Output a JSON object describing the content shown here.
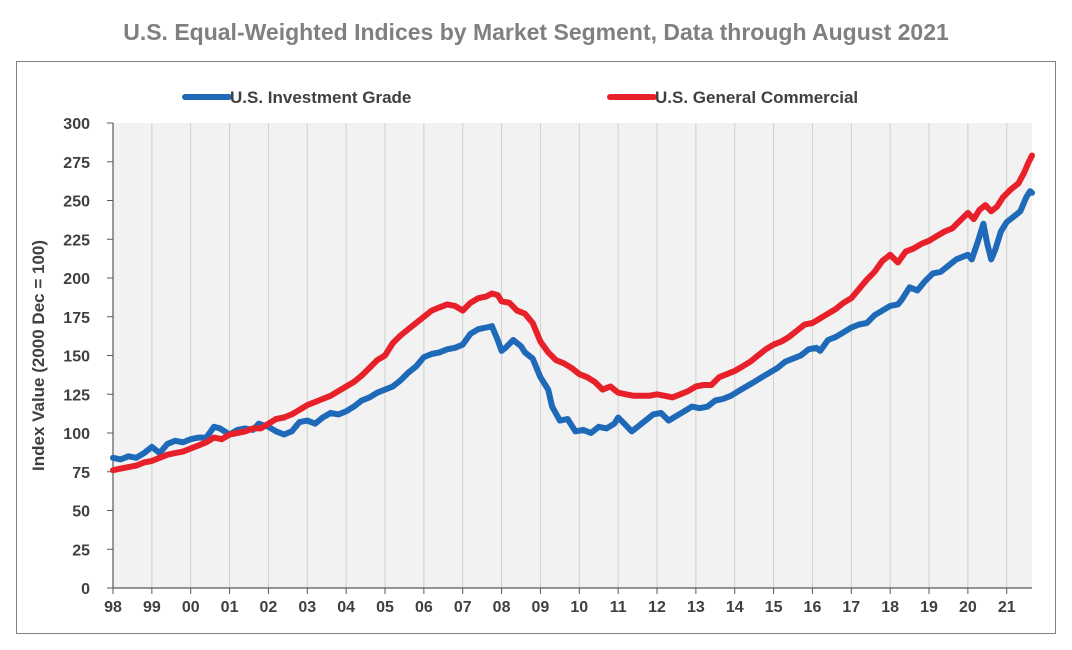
{
  "title": "U.S. Equal-Weighted Indices by Market Segment, Data through August 2021",
  "chart_data": {
    "type": "line",
    "title": "U.S. Equal-Weighted Indices by Market Segment, Data through August 2021",
    "xlabel": "",
    "ylabel": "Index Value (2000 Dec = 100)",
    "ylim": [
      0,
      300
    ],
    "xlim": [
      1998.0,
      2021.65
    ],
    "yticks": [
      0,
      25,
      50,
      75,
      100,
      125,
      150,
      175,
      200,
      225,
      250,
      275,
      300
    ],
    "xtick_labels": [
      "98",
      "99",
      "00",
      "01",
      "02",
      "03",
      "04",
      "05",
      "06",
      "07",
      "08",
      "09",
      "10",
      "11",
      "12",
      "13",
      "14",
      "15",
      "16",
      "17",
      "18",
      "19",
      "20",
      "21"
    ],
    "grid": "vertical",
    "legend": "top",
    "series": [
      {
        "name": "U.S. Investment Grade",
        "color": "#1f6ab8",
        "points": [
          [
            1998.0,
            84
          ],
          [
            1998.2,
            83
          ],
          [
            1998.4,
            85
          ],
          [
            1998.6,
            84
          ],
          [
            1998.8,
            87
          ],
          [
            1999.0,
            91
          ],
          [
            1999.2,
            87
          ],
          [
            1999.4,
            93
          ],
          [
            1999.6,
            95
          ],
          [
            1999.8,
            94
          ],
          [
            2000.0,
            96
          ],
          [
            2000.2,
            97
          ],
          [
            2000.4,
            97
          ],
          [
            2000.6,
            104
          ],
          [
            2000.75,
            103
          ],
          [
            2001.0,
            99
          ],
          [
            2001.2,
            102
          ],
          [
            2001.4,
            103
          ],
          [
            2001.6,
            102
          ],
          [
            2001.75,
            106
          ],
          [
            2002.0,
            104
          ],
          [
            2002.2,
            101
          ],
          [
            2002.4,
            99
          ],
          [
            2002.6,
            101
          ],
          [
            2002.8,
            107
          ],
          [
            2003.0,
            108
          ],
          [
            2003.2,
            106
          ],
          [
            2003.4,
            110
          ],
          [
            2003.6,
            113
          ],
          [
            2003.8,
            112
          ],
          [
            2004.0,
            114
          ],
          [
            2004.2,
            117
          ],
          [
            2004.4,
            121
          ],
          [
            2004.6,
            123
          ],
          [
            2004.8,
            126
          ],
          [
            2005.0,
            128
          ],
          [
            2005.2,
            130
          ],
          [
            2005.4,
            134
          ],
          [
            2005.6,
            139
          ],
          [
            2005.8,
            143
          ],
          [
            2006.0,
            149
          ],
          [
            2006.2,
            151
          ],
          [
            2006.4,
            152
          ],
          [
            2006.6,
            154
          ],
          [
            2006.8,
            155
          ],
          [
            2007.0,
            157
          ],
          [
            2007.2,
            164
          ],
          [
            2007.4,
            167
          ],
          [
            2007.6,
            168
          ],
          [
            2007.75,
            169
          ],
          [
            2007.9,
            160
          ],
          [
            2008.0,
            153
          ],
          [
            2008.1,
            155
          ],
          [
            2008.3,
            160
          ],
          [
            2008.5,
            156
          ],
          [
            2008.6,
            152
          ],
          [
            2008.8,
            148
          ],
          [
            2009.0,
            136
          ],
          [
            2009.2,
            128
          ],
          [
            2009.3,
            117
          ],
          [
            2009.5,
            108
          ],
          [
            2009.7,
            109
          ],
          [
            2009.9,
            101
          ],
          [
            2010.1,
            102
          ],
          [
            2010.3,
            100
          ],
          [
            2010.5,
            104
          ],
          [
            2010.7,
            103
          ],
          [
            2010.9,
            106
          ],
          [
            2011.0,
            110
          ],
          [
            2011.2,
            105
          ],
          [
            2011.35,
            101
          ],
          [
            2011.5,
            104
          ],
          [
            2011.7,
            108
          ],
          [
            2011.9,
            112
          ],
          [
            2012.1,
            113
          ],
          [
            2012.3,
            108
          ],
          [
            2012.5,
            111
          ],
          [
            2012.7,
            114
          ],
          [
            2012.9,
            117
          ],
          [
            2013.1,
            116
          ],
          [
            2013.3,
            117
          ],
          [
            2013.5,
            121
          ],
          [
            2013.7,
            122
          ],
          [
            2013.9,
            124
          ],
          [
            2014.1,
            127
          ],
          [
            2014.3,
            130
          ],
          [
            2014.5,
            133
          ],
          [
            2014.7,
            136
          ],
          [
            2014.9,
            139
          ],
          [
            2015.1,
            142
          ],
          [
            2015.3,
            146
          ],
          [
            2015.5,
            148
          ],
          [
            2015.7,
            150
          ],
          [
            2015.9,
            154
          ],
          [
            2016.1,
            155
          ],
          [
            2016.2,
            153
          ],
          [
            2016.4,
            160
          ],
          [
            2016.6,
            162
          ],
          [
            2016.8,
            165
          ],
          [
            2017.0,
            168
          ],
          [
            2017.2,
            170
          ],
          [
            2017.4,
            171
          ],
          [
            2017.6,
            176
          ],
          [
            2017.8,
            179
          ],
          [
            2018.0,
            182
          ],
          [
            2018.2,
            183
          ],
          [
            2018.3,
            186
          ],
          [
            2018.5,
            194
          ],
          [
            2018.7,
            192
          ],
          [
            2018.9,
            198
          ],
          [
            2019.1,
            203
          ],
          [
            2019.3,
            204
          ],
          [
            2019.5,
            208
          ],
          [
            2019.7,
            212
          ],
          [
            2019.9,
            214
          ],
          [
            2020.0,
            215
          ],
          [
            2020.1,
            212
          ],
          [
            2020.25,
            223
          ],
          [
            2020.4,
            235
          ],
          [
            2020.5,
            222
          ],
          [
            2020.6,
            212
          ],
          [
            2020.7,
            218
          ],
          [
            2020.85,
            230
          ],
          [
            2021.0,
            236
          ],
          [
            2021.2,
            240
          ],
          [
            2021.35,
            243
          ],
          [
            2021.5,
            252
          ],
          [
            2021.6,
            256
          ],
          [
            2021.65,
            255
          ]
        ]
      },
      {
        "name": "U.S. General Commercial",
        "color": "#e8202a",
        "points": [
          [
            1998.0,
            76
          ],
          [
            1998.2,
            77
          ],
          [
            1998.4,
            78
          ],
          [
            1998.6,
            79
          ],
          [
            1998.8,
            81
          ],
          [
            1999.0,
            82
          ],
          [
            1999.2,
            84
          ],
          [
            1999.4,
            86
          ],
          [
            1999.6,
            87
          ],
          [
            1999.8,
            88
          ],
          [
            2000.0,
            90
          ],
          [
            2000.2,
            92
          ],
          [
            2000.4,
            94
          ],
          [
            2000.6,
            97
          ],
          [
            2000.8,
            96
          ],
          [
            2001.0,
            99
          ],
          [
            2001.2,
            100
          ],
          [
            2001.4,
            101
          ],
          [
            2001.6,
            103
          ],
          [
            2001.8,
            103
          ],
          [
            2002.0,
            106
          ],
          [
            2002.2,
            109
          ],
          [
            2002.4,
            110
          ],
          [
            2002.6,
            112
          ],
          [
            2002.8,
            115
          ],
          [
            2003.0,
            118
          ],
          [
            2003.2,
            120
          ],
          [
            2003.4,
            122
          ],
          [
            2003.6,
            124
          ],
          [
            2003.8,
            127
          ],
          [
            2004.0,
            130
          ],
          [
            2004.2,
            133
          ],
          [
            2004.4,
            137
          ],
          [
            2004.6,
            142
          ],
          [
            2004.8,
            147
          ],
          [
            2005.0,
            150
          ],
          [
            2005.2,
            158
          ],
          [
            2005.4,
            163
          ],
          [
            2005.6,
            167
          ],
          [
            2005.8,
            171
          ],
          [
            2006.0,
            175
          ],
          [
            2006.2,
            179
          ],
          [
            2006.4,
            181
          ],
          [
            2006.6,
            183
          ],
          [
            2006.8,
            182
          ],
          [
            2007.0,
            179
          ],
          [
            2007.2,
            184
          ],
          [
            2007.4,
            187
          ],
          [
            2007.6,
            188
          ],
          [
            2007.75,
            190
          ],
          [
            2007.9,
            189
          ],
          [
            2008.0,
            185
          ],
          [
            2008.2,
            184
          ],
          [
            2008.4,
            179
          ],
          [
            2008.6,
            177
          ],
          [
            2008.8,
            171
          ],
          [
            2009.0,
            159
          ],
          [
            2009.2,
            152
          ],
          [
            2009.4,
            147
          ],
          [
            2009.6,
            145
          ],
          [
            2009.8,
            142
          ],
          [
            2010.0,
            138
          ],
          [
            2010.2,
            136
          ],
          [
            2010.4,
            133
          ],
          [
            2010.6,
            128
          ],
          [
            2010.8,
            130
          ],
          [
            2011.0,
            126
          ],
          [
            2011.2,
            125
          ],
          [
            2011.4,
            124
          ],
          [
            2011.6,
            124
          ],
          [
            2011.8,
            124
          ],
          [
            2012.0,
            125
          ],
          [
            2012.2,
            124
          ],
          [
            2012.4,
            123
          ],
          [
            2012.6,
            125
          ],
          [
            2012.8,
            127
          ],
          [
            2013.0,
            130
          ],
          [
            2013.2,
            131
          ],
          [
            2013.4,
            131
          ],
          [
            2013.6,
            136
          ],
          [
            2013.8,
            138
          ],
          [
            2014.0,
            140
          ],
          [
            2014.2,
            143
          ],
          [
            2014.4,
            146
          ],
          [
            2014.6,
            150
          ],
          [
            2014.8,
            154
          ],
          [
            2015.0,
            157
          ],
          [
            2015.2,
            159
          ],
          [
            2015.4,
            162
          ],
          [
            2015.6,
            166
          ],
          [
            2015.8,
            170
          ],
          [
            2016.0,
            171
          ],
          [
            2016.2,
            174
          ],
          [
            2016.4,
            177
          ],
          [
            2016.6,
            180
          ],
          [
            2016.8,
            184
          ],
          [
            2017.0,
            187
          ],
          [
            2017.2,
            193
          ],
          [
            2017.4,
            199
          ],
          [
            2017.6,
            204
          ],
          [
            2017.8,
            211
          ],
          [
            2018.0,
            215
          ],
          [
            2018.2,
            210
          ],
          [
            2018.4,
            217
          ],
          [
            2018.6,
            219
          ],
          [
            2018.8,
            222
          ],
          [
            2019.0,
            224
          ],
          [
            2019.2,
            227
          ],
          [
            2019.4,
            230
          ],
          [
            2019.6,
            232
          ],
          [
            2019.8,
            237
          ],
          [
            2020.0,
            242
          ],
          [
            2020.15,
            238
          ],
          [
            2020.3,
            244
          ],
          [
            2020.45,
            247
          ],
          [
            2020.6,
            243
          ],
          [
            2020.75,
            246
          ],
          [
            2020.9,
            252
          ],
          [
            2021.1,
            257
          ],
          [
            2021.3,
            261
          ],
          [
            2021.45,
            268
          ],
          [
            2021.55,
            274
          ],
          [
            2021.65,
            279
          ]
        ]
      }
    ]
  }
}
